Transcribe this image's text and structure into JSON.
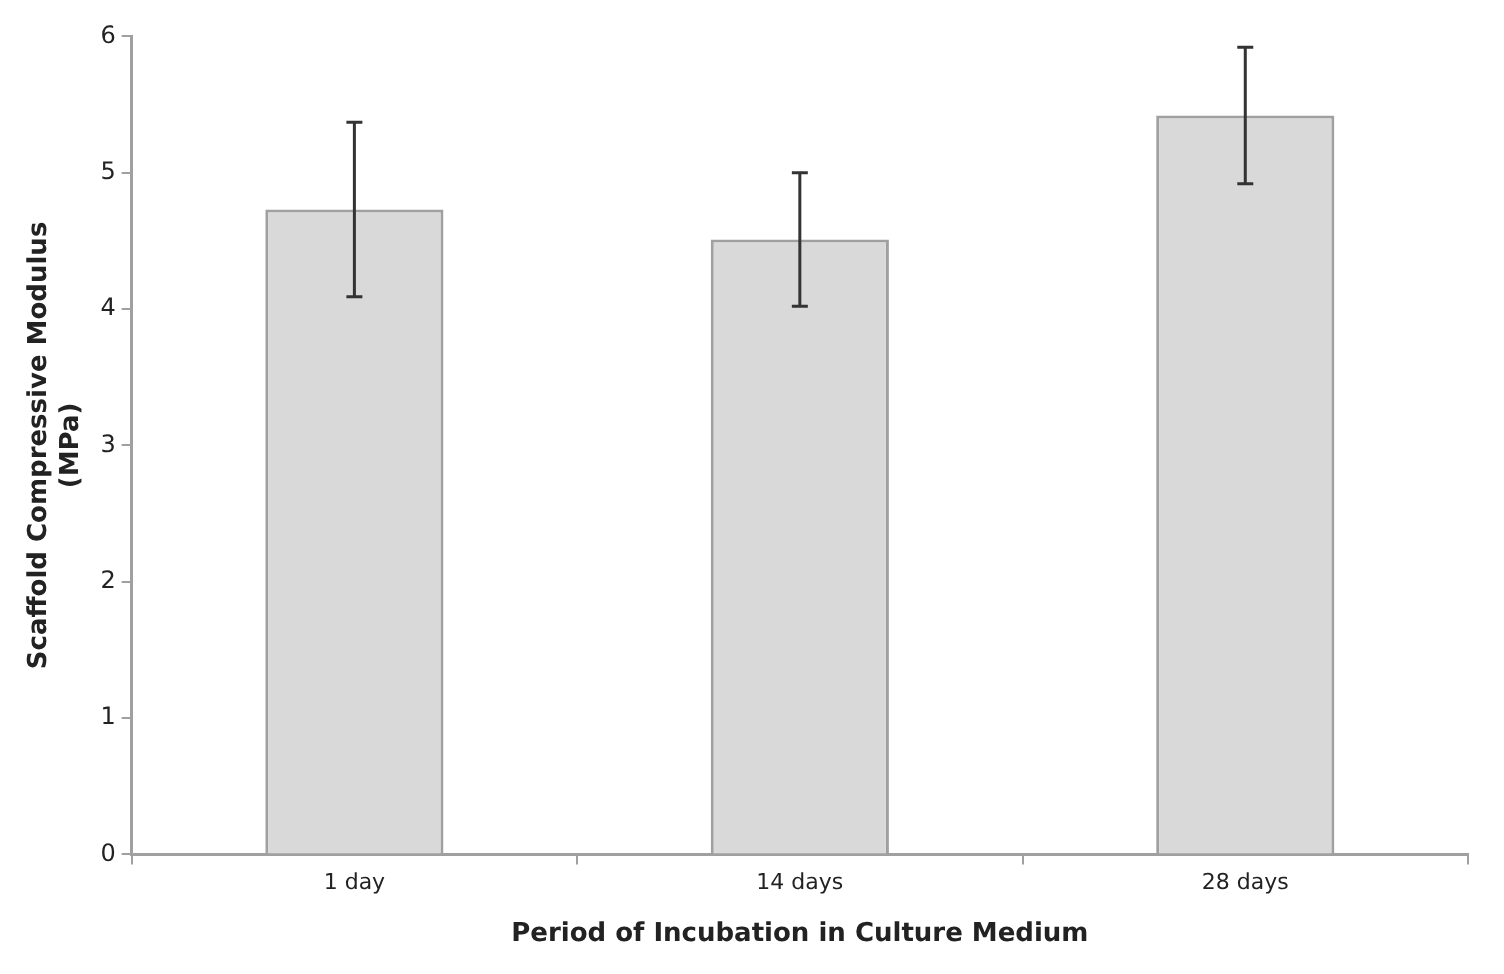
{
  "chart_data": {
    "type": "bar",
    "xlabel": "Period of Incubation in Culture Medium",
    "ylabel": "Scaffold Compressive Modulus (MPa)",
    "categories": [
      "1 day",
      "14 days",
      "28 days"
    ],
    "values": [
      4.73,
      4.51,
      5.42
    ],
    "errors": [
      0.64,
      0.49,
      0.5
    ],
    "color": "#d9d9d9",
    "ylim": [
      0,
      6
    ],
    "yticks": [
      0,
      1,
      2,
      3,
      4,
      5,
      6
    ],
    "grid": false,
    "legend": false
  }
}
